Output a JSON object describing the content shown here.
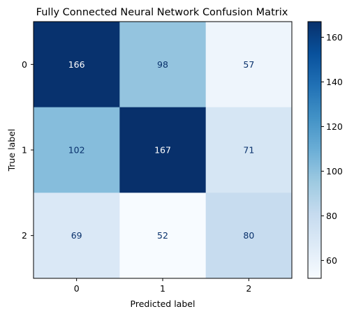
{
  "chart_data": {
    "type": "heatmap",
    "title": "Fully Connected Neural Network Confusion Matrix",
    "xlabel": "Predicted label",
    "ylabel": "True label",
    "x_categories": [
      "0",
      "1",
      "2"
    ],
    "y_categories": [
      "0",
      "1",
      "2"
    ],
    "values": [
      [
        166,
        98,
        57
      ],
      [
        102,
        167,
        71
      ],
      [
        69,
        52,
        80
      ]
    ],
    "colormap": "Blues",
    "color_range": [
      52,
      167
    ],
    "colorbar_ticks": [
      60,
      80,
      100,
      120,
      140,
      160
    ],
    "colorbar_tick_labels": [
      "60",
      "80",
      "100",
      "120",
      "140",
      "160"
    ],
    "low_color": "#f7fbff",
    "high_color": "#08306b",
    "text_dark_color": "#08306b",
    "text_light_color": "#ffffff"
  }
}
